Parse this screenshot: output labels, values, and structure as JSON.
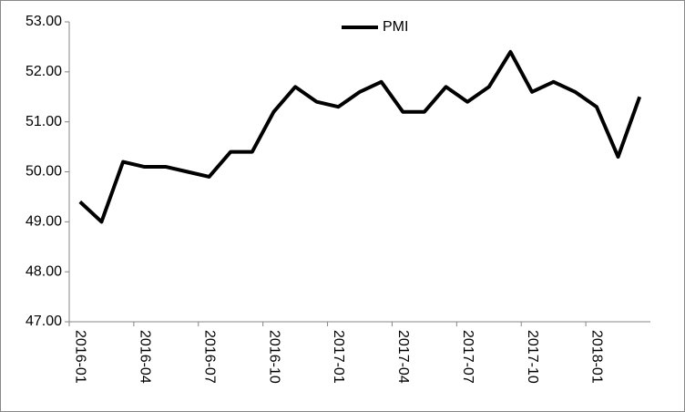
{
  "chart_data": {
    "type": "line",
    "categories": [
      "2016-01",
      null,
      null,
      "2016-04",
      null,
      null,
      "2016-07",
      null,
      null,
      "2016-10",
      null,
      null,
      "2017-01",
      null,
      null,
      "2017-04",
      null,
      null,
      "2017-07",
      null,
      null,
      "2017-10",
      null,
      null,
      "2018-01",
      null,
      null
    ],
    "series": [
      {
        "name": "PMI",
        "color": "#000000",
        "values": [
          49.4,
          49.0,
          50.2,
          50.1,
          50.1,
          50.0,
          49.9,
          50.4,
          50.4,
          51.2,
          51.7,
          51.4,
          51.3,
          51.6,
          51.8,
          51.2,
          51.2,
          51.7,
          51.4,
          51.7,
          52.4,
          51.6,
          51.8,
          51.6,
          51.3,
          50.3,
          51.5
        ]
      }
    ],
    "ylim": [
      47,
      53
    ],
    "yticks": [
      {
        "value": 47,
        "label": "47.00"
      },
      {
        "value": 48,
        "label": "48.00"
      },
      {
        "value": 49,
        "label": "49.00"
      },
      {
        "value": 50,
        "label": "50.00"
      },
      {
        "value": 51,
        "label": "51.00"
      },
      {
        "value": 52,
        "label": "52.00"
      },
      {
        "value": 53,
        "label": "53.00"
      }
    ],
    "legend": "top",
    "grid": false
  }
}
